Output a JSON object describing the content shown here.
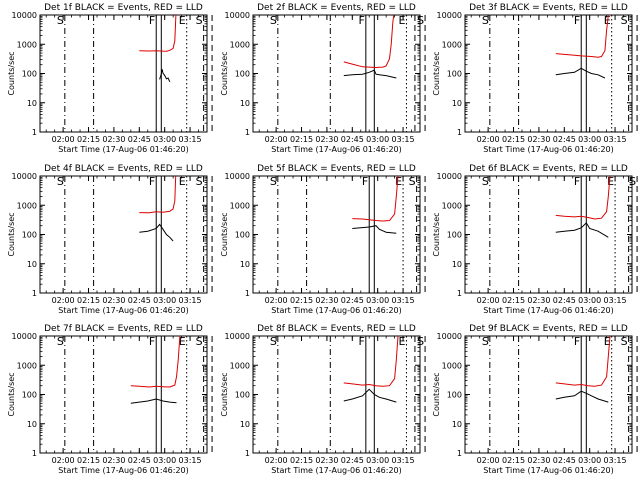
{
  "figure": {
    "xlabel": "Start Time (17-Aug-06 01:46:20)",
    "ylabel": "Counts/sec",
    "yticks": [
      "1",
      "10",
      "100",
      "1000",
      "10000"
    ],
    "xticks": [
      "02:00",
      "02:15",
      "02:30",
      "02:45",
      "03:00",
      "03:15"
    ],
    "marker_labels": {
      "S": "S",
      "F": "F",
      "E": "E"
    },
    "colors": {
      "events": "#000000",
      "lld": "#dd0000",
      "axes": "#000000"
    }
  },
  "chart_data": [
    {
      "type": "line",
      "title": "Det 1f BLACK = Events, RED = LLD",
      "yscale": "log",
      "ylim": [
        1,
        10000
      ],
      "xlim": [
        "01:46:20",
        "03:25:00"
      ],
      "series": [
        {
          "points": [
            [
              162,
              63
            ],
            [
              163,
              97
            ],
            [
              163.5,
              140
            ],
            [
              164,
              102
            ],
            [
              165,
              86
            ],
            [
              166,
              66
            ],
            [
              167,
              70
            ],
            [
              168,
              52
            ]
          ]
        },
        {
          "points": [
            [
              150,
              600
            ],
            [
              156,
              590
            ],
            [
              160,
              600
            ],
            [
              164,
              585
            ],
            [
              166,
              580
            ],
            [
              168,
              620
            ],
            [
              170,
              720
            ],
            [
              171,
              1300
            ],
            [
              171.6,
              10000
            ]
          ]
        }
      ],
      "markers": [
        {
          "label": "S",
          "x": 106
        },
        {
          "x": 123
        },
        {
          "label": "F",
          "x": 160
        },
        {
          "x": 163
        },
        {
          "label": "E",
          "x": 178
        },
        {
          "label": "S",
          "x": 188
        },
        {
          "x": 193
        }
      ]
    },
    {
      "type": "line",
      "title": "Det 2f BLACK = Events, RED = LLD",
      "yscale": "log",
      "ylim": [
        1,
        10000
      ],
      "xlim": [
        "01:46:20",
        "03:25:00"
      ],
      "series": [
        {
          "points": [
            [
              145,
              85
            ],
            [
              150,
              90
            ],
            [
              156,
              95
            ],
            [
              160,
              110
            ],
            [
              163,
              130
            ],
            [
              164,
              95
            ],
            [
              166,
              90
            ],
            [
              170,
              85
            ],
            [
              176,
              70
            ]
          ]
        },
        {
          "points": [
            [
              145,
              250
            ],
            [
              150,
              210
            ],
            [
              156,
              170
            ],
            [
              160,
              165
            ],
            [
              164,
              160
            ],
            [
              168,
              165
            ],
            [
              170,
              180
            ],
            [
              172,
              320
            ],
            [
              173,
              1000
            ],
            [
              174,
              6000
            ],
            [
              174.5,
              10000
            ]
          ]
        }
      ],
      "markers": [
        {
          "label": "S",
          "x": 106
        },
        {
          "x": 137
        },
        {
          "label": "F",
          "x": 158
        },
        {
          "x": 163
        },
        {
          "label": "E",
          "x": 182
        },
        {
          "x": 187
        },
        {
          "label": "S",
          "x": 193
        }
      ]
    },
    {
      "type": "line",
      "title": "Det 3f BLACK = Events, RED = LLD",
      "yscale": "log",
      "ylim": [
        1,
        10000
      ],
      "xlim": [
        "01:46:20",
        "03:25:00"
      ],
      "series": [
        {
          "points": [
            [
              145,
              90
            ],
            [
              150,
              100
            ],
            [
              156,
              110
            ],
            [
              160,
              150
            ],
            [
              163,
              120
            ],
            [
              166,
              100
            ],
            [
              170,
              90
            ],
            [
              174,
              70
            ]
          ]
        },
        {
          "points": [
            [
              145,
              480
            ],
            [
              150,
              450
            ],
            [
              156,
              420
            ],
            [
              160,
              400
            ],
            [
              166,
              380
            ],
            [
              170,
              360
            ],
            [
              172,
              380
            ],
            [
              174,
              600
            ],
            [
              175,
              3000
            ],
            [
              176,
              10000
            ]
          ]
        }
      ],
      "markers": [
        {
          "label": "S",
          "x": 106
        },
        {
          "x": 123
        },
        {
          "label": "F",
          "x": 160
        },
        {
          "x": 163
        },
        {
          "label": "E",
          "x": 178
        },
        {
          "label": "S",
          "x": 188
        },
        {
          "x": 193
        }
      ]
    },
    {
      "type": "line",
      "title": "Det 4f BLACK = Events, RED = LLD",
      "yscale": "log",
      "ylim": [
        1,
        10000
      ],
      "xlim": [
        "01:46:20",
        "03:25:00"
      ],
      "series": [
        {
          "points": [
            [
              150,
              120
            ],
            [
              155,
              130
            ],
            [
              160,
              160
            ],
            [
              162,
              220
            ],
            [
              164,
              150
            ],
            [
              166,
              100
            ],
            [
              168,
              80
            ],
            [
              170,
              60
            ]
          ]
        },
        {
          "points": [
            [
              150,
              560
            ],
            [
              156,
              550
            ],
            [
              160,
              600
            ],
            [
              164,
              580
            ],
            [
              168,
              620
            ],
            [
              170,
              750
            ],
            [
              171,
              1400
            ],
            [
              171.5,
              10000
            ]
          ]
        }
      ],
      "markers": [
        {
          "label": "S",
          "x": 106
        },
        {
          "x": 123
        },
        {
          "label": "F",
          "x": 160
        },
        {
          "x": 163
        },
        {
          "label": "E",
          "x": 178
        },
        {
          "label": "S",
          "x": 188
        },
        {
          "x": 193
        }
      ]
    },
    {
      "type": "line",
      "title": "Det 5f BLACK = Events, RED = LLD",
      "yscale": "log",
      "ylim": [
        1,
        10000
      ],
      "xlim": [
        "01:46:20",
        "03:25:00"
      ],
      "series": [
        {
          "points": [
            [
              150,
              160
            ],
            [
              155,
              170
            ],
            [
              160,
              180
            ],
            [
              164,
              200
            ],
            [
              166,
              150
            ],
            [
              170,
              120
            ],
            [
              176,
              110
            ]
          ]
        },
        {
          "points": [
            [
              150,
              350
            ],
            [
              156,
              340
            ],
            [
              160,
              320
            ],
            [
              164,
              300
            ],
            [
              168,
              290
            ],
            [
              172,
              300
            ],
            [
              175,
              500
            ],
            [
              176,
              2000
            ],
            [
              177,
              10000
            ]
          ]
        }
      ],
      "markers": [
        {
          "label": "S",
          "x": 106
        },
        {
          "x": 123
        },
        {
          "label": "F",
          "x": 160
        },
        {
          "x": 163
        },
        {
          "label": "E",
          "x": 180
        },
        {
          "label": "S",
          "x": 188
        },
        {
          "x": 193
        }
      ]
    },
    {
      "type": "line",
      "title": "Det 6f BLACK = Events, RED = LLD",
      "yscale": "log",
      "ylim": [
        1,
        10000
      ],
      "xlim": [
        "01:46:20",
        "03:25:00"
      ],
      "series": [
        {
          "points": [
            [
              145,
              120
            ],
            [
              150,
              130
            ],
            [
              156,
              140
            ],
            [
              160,
              170
            ],
            [
              163,
              250
            ],
            [
              165,
              160
            ],
            [
              170,
              130
            ],
            [
              176,
              80
            ]
          ]
        },
        {
          "points": [
            [
              145,
              450
            ],
            [
              150,
              420
            ],
            [
              156,
              400
            ],
            [
              160,
              420
            ],
            [
              164,
              380
            ],
            [
              168,
              340
            ],
            [
              172,
              360
            ],
            [
              175,
              600
            ],
            [
              176,
              2000
            ],
            [
              177,
              10000
            ]
          ]
        }
      ],
      "markers": [
        {
          "label": "S",
          "x": 106
        },
        {
          "x": 123
        },
        {
          "label": "F",
          "x": 160
        },
        {
          "x": 163
        },
        {
          "label": "E",
          "x": 180
        },
        {
          "x": 188
        },
        {
          "label": "S",
          "x": 193
        }
      ]
    },
    {
      "type": "line",
      "title": "Det 7f BLACK = Events, RED = LLD",
      "yscale": "log",
      "ylim": [
        1,
        10000
      ],
      "xlim": [
        "01:46:20",
        "03:25:00"
      ],
      "series": [
        {
          "points": [
            [
              145,
              50
            ],
            [
              150,
              55
            ],
            [
              155,
              60
            ],
            [
              160,
              70
            ],
            [
              164,
              60
            ],
            [
              168,
              55
            ],
            [
              172,
              52
            ]
          ]
        },
        {
          "points": [
            [
              145,
              200
            ],
            [
              150,
              190
            ],
            [
              156,
              180
            ],
            [
              160,
              190
            ],
            [
              164,
              185
            ],
            [
              168,
              180
            ],
            [
              171,
              210
            ],
            [
              172,
              400
            ],
            [
              173,
              1500
            ],
            [
              174,
              10000
            ]
          ]
        }
      ],
      "markers": [
        {
          "label": "S",
          "x": 106
        },
        {
          "x": 123
        },
        {
          "label": "F",
          "x": 160
        },
        {
          "x": 163
        },
        {
          "label": "E",
          "x": 178
        },
        {
          "label": "S",
          "x": 188
        },
        {
          "x": 193
        }
      ]
    },
    {
      "type": "line",
      "title": "Det 8f BLACK = Events, RED = LLD",
      "yscale": "log",
      "ylim": [
        1,
        10000
      ],
      "xlim": [
        "01:46:20",
        "03:25:00"
      ],
      "series": [
        {
          "points": [
            [
              145,
              60
            ],
            [
              150,
              70
            ],
            [
              156,
              90
            ],
            [
              160,
              150
            ],
            [
              163,
              100
            ],
            [
              166,
              80
            ],
            [
              170,
              70
            ],
            [
              176,
              55
            ]
          ]
        },
        {
          "points": [
            [
              145,
              250
            ],
            [
              150,
              230
            ],
            [
              156,
              210
            ],
            [
              160,
              220
            ],
            [
              164,
              200
            ],
            [
              168,
              190
            ],
            [
              172,
              200
            ],
            [
              175,
              350
            ],
            [
              176,
              1500
            ],
            [
              177,
              10000
            ]
          ]
        }
      ],
      "markers": [
        {
          "label": "S",
          "x": 106
        },
        {
          "x": 137
        },
        {
          "label": "F",
          "x": 158
        },
        {
          "x": 163
        },
        {
          "label": "E",
          "x": 182
        },
        {
          "x": 187
        },
        {
          "label": "S",
          "x": 193
        }
      ]
    },
    {
      "type": "line",
      "title": "Det 9f BLACK = Events, RED = LLD",
      "yscale": "log",
      "ylim": [
        1,
        10000
      ],
      "xlim": [
        "01:46:20",
        "03:25:00"
      ],
      "series": [
        {
          "points": [
            [
              145,
              70
            ],
            [
              150,
              80
            ],
            [
              156,
              90
            ],
            [
              160,
              130
            ],
            [
              163,
              110
            ],
            [
              166,
              90
            ],
            [
              170,
              70
            ],
            [
              176,
              55
            ]
          ]
        },
        {
          "points": [
            [
              145,
              250
            ],
            [
              150,
              230
            ],
            [
              156,
              210
            ],
            [
              160,
              220
            ],
            [
              164,
              200
            ],
            [
              168,
              190
            ],
            [
              172,
              210
            ],
            [
              175,
              400
            ],
            [
              176,
              2000
            ],
            [
              177,
              10000
            ]
          ]
        }
      ],
      "markers": [
        {
          "label": "S",
          "x": 106
        },
        {
          "x": 123
        },
        {
          "label": "F",
          "x": 160
        },
        {
          "x": 163
        },
        {
          "label": "E",
          "x": 178
        },
        {
          "label": "S",
          "x": 188
        },
        {
          "x": 193
        }
      ]
    }
  ]
}
